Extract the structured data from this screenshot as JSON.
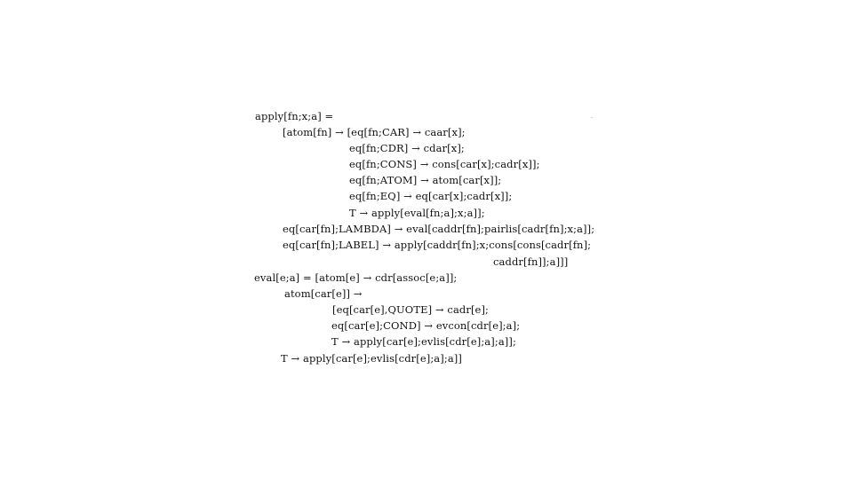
{
  "document": {
    "lines": [
      "apply[fn;x;a] =",
      "[atom[fn] → [eq[fn;CAR] → caar[x];",
      "eq[fn;CDR] → cdar[x];",
      "eq[fn;CONS] → cons[car[x];cadr[x]];",
      "eq[fn;ATOM] → atom[car[x]];",
      "eq[fn;EQ] → eq[car[x];cadr[x]];",
      "T → apply[eval[fn;a];x;a]];",
      "eq[car[fn];LAMBDA] → eval[caddr[fn];pairlis[cadr[fn];x;a]];",
      "eq[car[fn];LABEL] → apply[caddr[fn];x;cons[cons[cadr[fn];",
      "caddr[fn]];a]]]",
      "eval[e;a] = [atom[e] → cdr[assoc[e;a]];",
      "atom[car[e]] →",
      "[eq[car[e],QUOTE] → cadr[e];",
      "eq[car[e];COND] → evcon[cdr[e];a];",
      "T → apply[car[e];evlis[cdr[e];a];a]];",
      "T → apply[car[e];evlis[cdr[e];a];a]]"
    ]
  }
}
